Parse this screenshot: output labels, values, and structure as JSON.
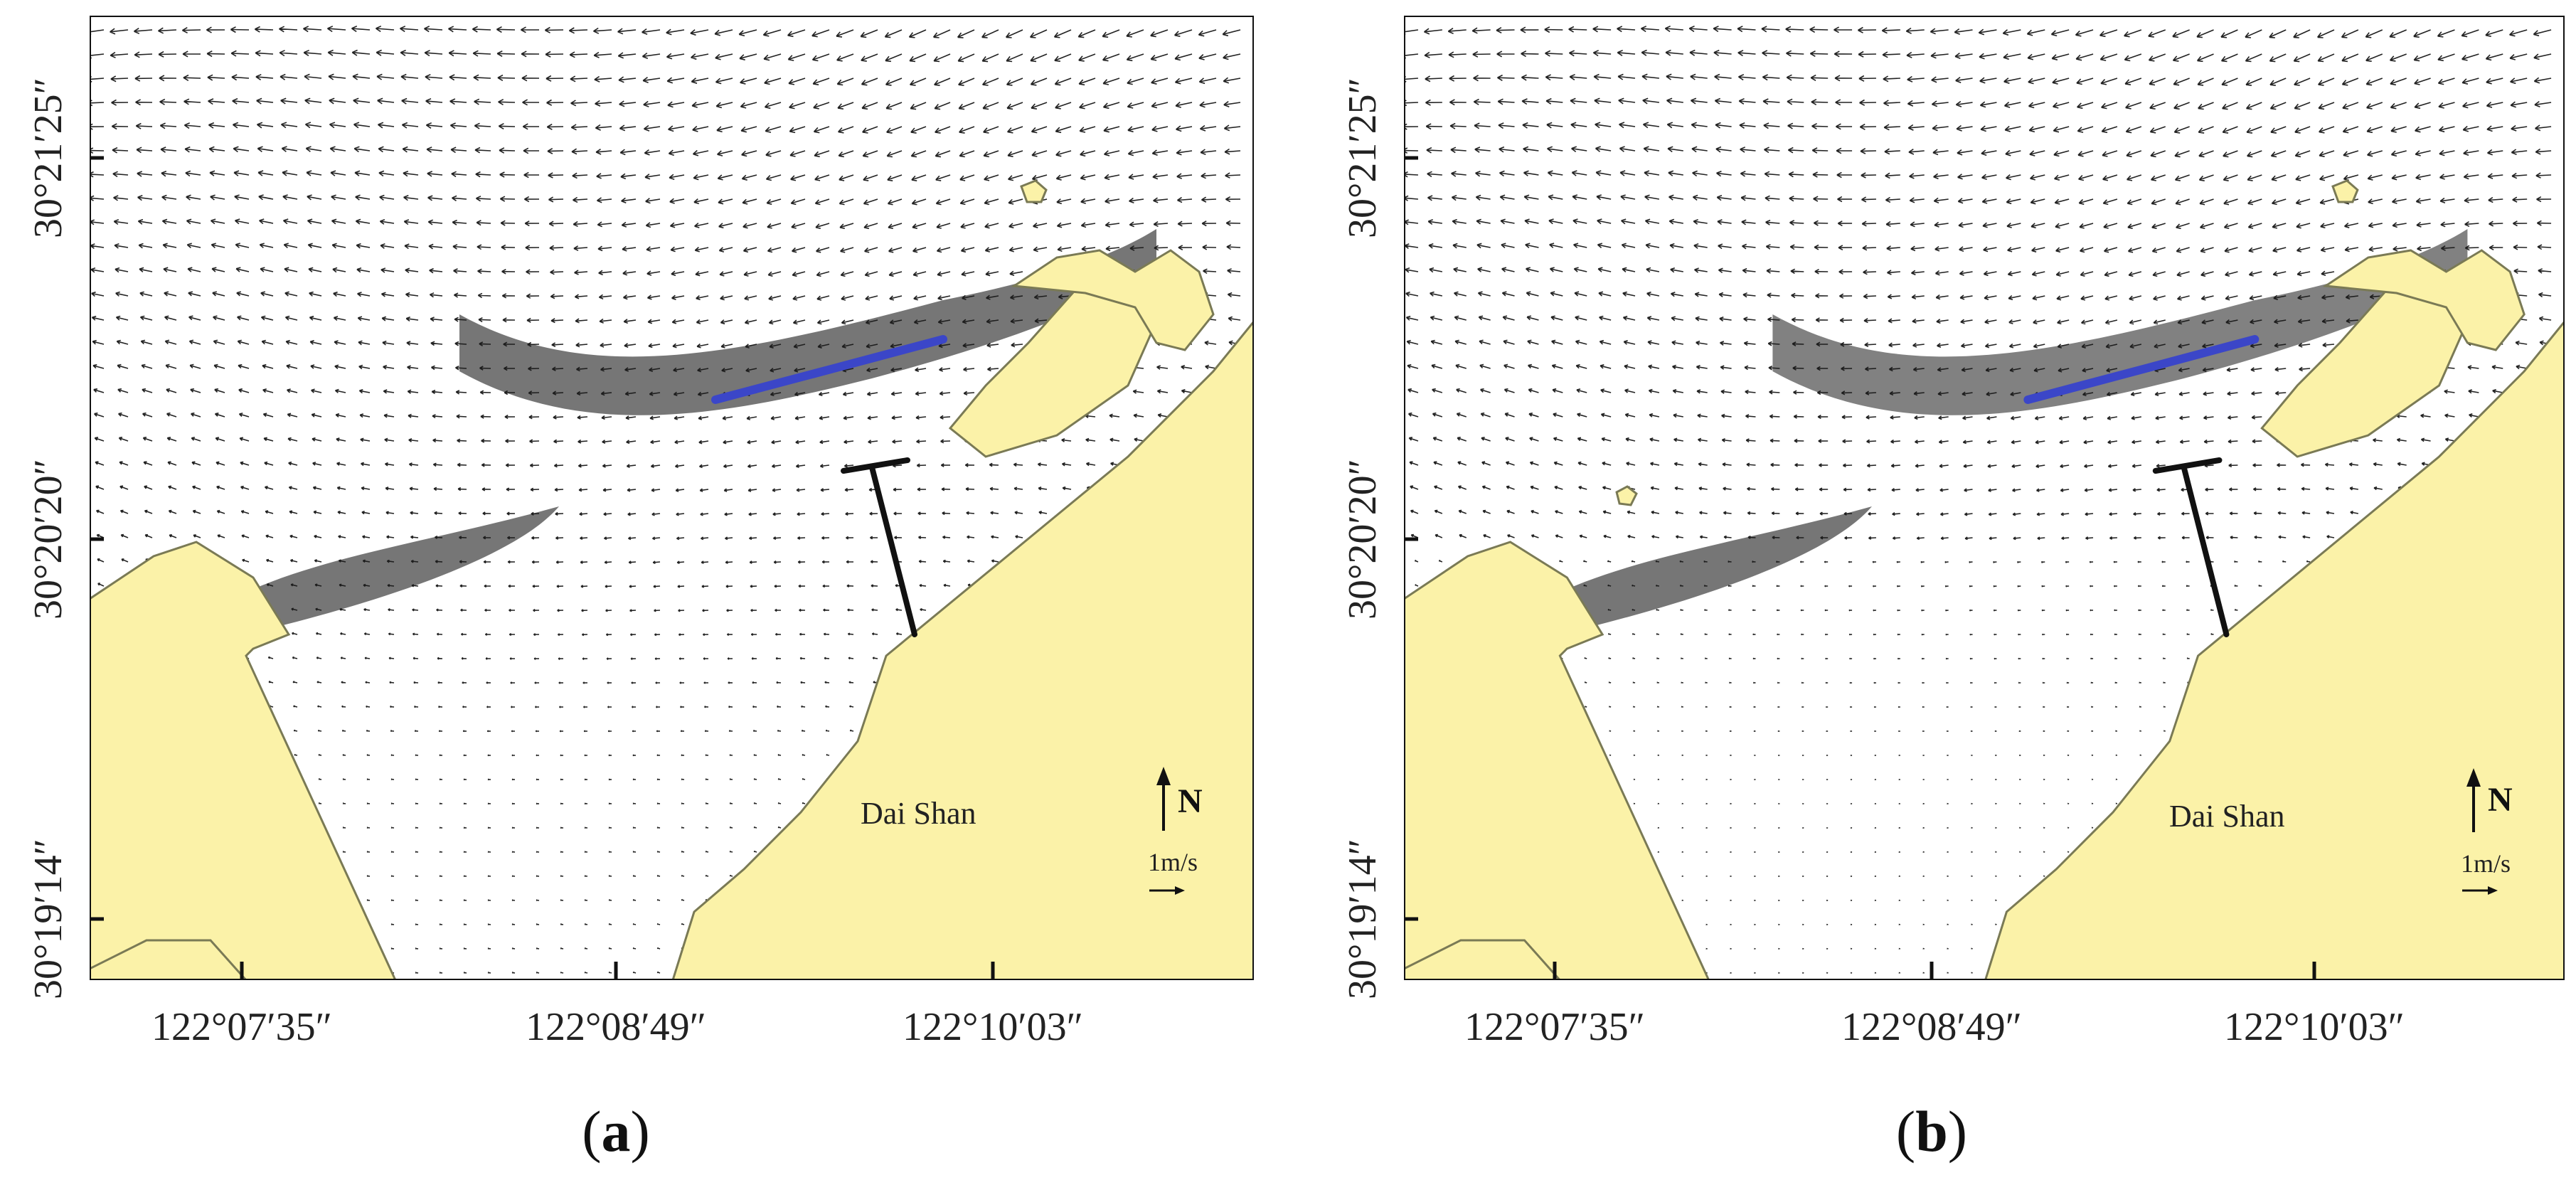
{
  "panels": [
    {
      "id": "a",
      "caption_prefix": "(",
      "caption_letter": "a",
      "caption_suffix": ")",
      "place_label": "Dai Shan",
      "north_label": "N",
      "scale_label": "1m/s",
      "lat_ticks": [
        "30°21′25″",
        "30°20′20″",
        "30°19′14″"
      ],
      "lon_ticks": [
        "122°07′35″",
        "122°08′49″",
        "122°10′03″"
      ]
    },
    {
      "id": "b",
      "caption_prefix": "(",
      "caption_letter": "b",
      "caption_suffix": ")",
      "place_label": "Dai Shan",
      "north_label": "N",
      "scale_label": "1m/s",
      "lat_ticks": [
        "30°21′25″",
        "30°20′20″",
        "30°19′14″"
      ],
      "lon_ticks": [
        "122°07′35″",
        "122°08′49″",
        "122°10′03″"
      ]
    }
  ],
  "colors": {
    "land": "#fbf2a8",
    "water": "#ffffff",
    "coastline": "#7a7a55",
    "vectors": "#222222",
    "breakwater": "#3b46c8",
    "jetty": "#111111"
  },
  "icons": [
    "north-arrow-icon",
    "scale-arrow-icon"
  ]
}
